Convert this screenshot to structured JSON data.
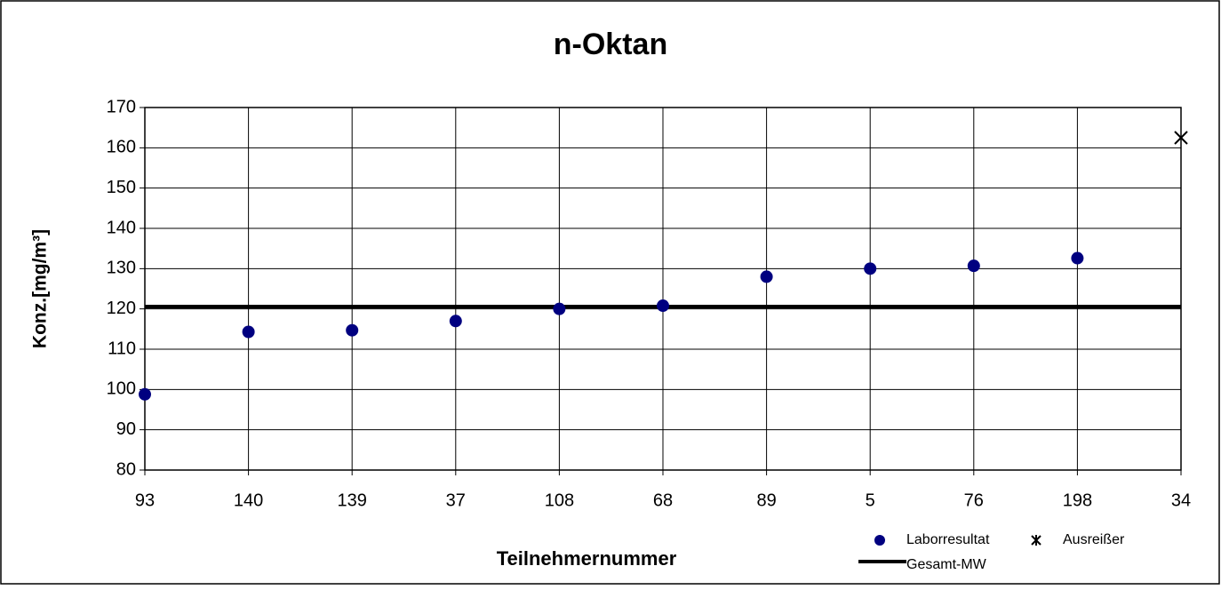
{
  "chart_data": {
    "type": "scatter",
    "title": "n-Oktan",
    "x_label": "Teilnehmernummer",
    "y_label": "Konz.[mg/m³]",
    "categories": [
      "93",
      "140",
      "139",
      "37",
      "108",
      "68",
      "89",
      "5",
      "76",
      "198",
      "34"
    ],
    "series": [
      {
        "name": "Laborresultat",
        "color": "#000080",
        "marker": "circle",
        "values": [
          98.8,
          114.3,
          114.7,
          117,
          120,
          120.8,
          128,
          130,
          130.7,
          132.6,
          null
        ]
      },
      {
        "name": "Ausreißer",
        "color": "#000000",
        "marker": "x",
        "values": [
          null,
          null,
          null,
          null,
          null,
          null,
          null,
          null,
          null,
          null,
          162.5
        ]
      }
    ],
    "mean": {
      "name": "Gesamt-MW",
      "value": 120.6,
      "color": "#000000"
    },
    "ylim": [
      80,
      170
    ],
    "yticks": [
      80,
      90,
      100,
      110,
      120,
      130,
      140,
      150,
      160,
      170
    ],
    "grid": true
  }
}
